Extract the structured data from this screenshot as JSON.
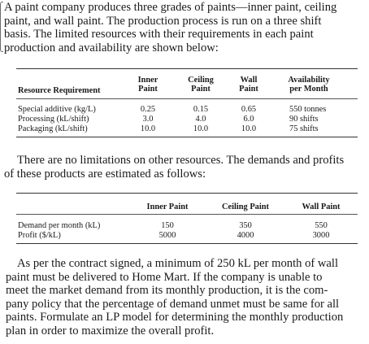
{
  "intro_lines": [
    "A paint company produces three grades of paints—inner paint, ceiling",
    "paint, and wall paint. The production process is run on a three shift",
    "basis. The limited resources with their requirements in each paint",
    "production and availability are shown below:"
  ],
  "table1": {
    "headers": {
      "resource": "Resource Requirement",
      "inner_1": "Inner",
      "inner_2": "Paint",
      "ceiling_1": "Ceiling",
      "ceiling_2": "Paint",
      "wall_1": "Wall",
      "wall_2": "Paint",
      "avail_1": "Availability",
      "avail_2": "per Month"
    },
    "rows": [
      {
        "label": "Special additive (kg/L)",
        "inner": "0.25",
        "ceiling": "0.15",
        "wall": "0.65",
        "availability": "550 tonnes"
      },
      {
        "label": "Processing (kL/shift)",
        "inner": "3.0",
        "ceiling": "4.0",
        "wall": "6.0",
        "availability": "90 shifts"
      },
      {
        "label": "Packaging (kL/shift)",
        "inner": "10.0",
        "ceiling": "10.0",
        "wall": "10.0",
        "availability": "75 shifts"
      }
    ]
  },
  "middle_lines": [
    "There are no limitations on other resources. The demands and profits",
    "of these products are estimated as follows:"
  ],
  "table2": {
    "headers": {
      "inner": "Inner Paint",
      "ceiling": "Ceiling Paint",
      "wall": "Wall Paint"
    },
    "rows": [
      {
        "label": "Demand per month (kL)",
        "inner": "150",
        "ceiling": "350",
        "wall": "550"
      },
      {
        "label": "Profit ($/kL)",
        "inner": "5000",
        "ceiling": "4000",
        "wall": "3000"
      }
    ]
  },
  "final_lines": [
    "As per the contract signed, a minimum of 250 kL per month of wall",
    "paint must be delivered to Home Mart. If the company is unable to",
    "meet the market demand from its monthly production, it is the com-",
    "pany policy that the percentage of demand unmet must be same for all",
    "paints. Formulate an LP model for determining the monthly production",
    "plan in order to maximize the overall profit."
  ]
}
